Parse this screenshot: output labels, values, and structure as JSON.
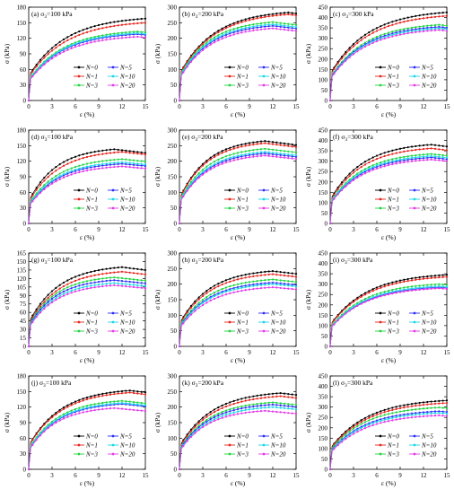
{
  "figure": {
    "legend_labels": [
      "N=0",
      "N=1",
      "N=3",
      "N=5",
      "N=10",
      "N=20"
    ]
  },
  "chart_data": [
    {
      "type": "line",
      "panel_label": "(a) σ3=100 kPa",
      "xlabel": "ε (%)",
      "ylabel": "σ (kPa)",
      "xlim": [
        0,
        15
      ],
      "xticks": [
        0,
        3,
        6,
        9,
        12,
        15
      ],
      "ylim": [
        0,
        180
      ],
      "yticks": [
        0,
        30,
        60,
        90,
        120,
        150,
        180
      ],
      "legend": "bottom-right",
      "series": [
        {
          "name": "N=0",
          "color": "#000000",
          "peak": 158,
          "peak_strain": 15
        },
        {
          "name": "N=1",
          "color": "#e8241c",
          "peak": 150,
          "peak_strain": 15
        },
        {
          "name": "N=3",
          "color": "#1fd43d",
          "peak": 133,
          "peak_strain": 14
        },
        {
          "name": "N=5",
          "color": "#2b2bff",
          "peak": 128,
          "peak_strain": 14
        },
        {
          "name": "N=10",
          "color": "#19d7e6",
          "peak": 130,
          "peak_strain": 14
        },
        {
          "name": "N=20",
          "color": "#e23ae6",
          "peak": 123,
          "peak_strain": 14
        }
      ]
    },
    {
      "type": "line",
      "panel_label": "(b) σ3=200 kPa",
      "xlabel": "ε (%)",
      "ylabel": "σ (kPa)",
      "xlim": [
        0,
        15
      ],
      "xticks": [
        0,
        3,
        6,
        9,
        12,
        15
      ],
      "ylim": [
        0,
        300
      ],
      "yticks": [
        0,
        50,
        100,
        150,
        200,
        250,
        300
      ],
      "legend": "bottom-right",
      "series": [
        {
          "name": "N=0",
          "color": "#000000",
          "peak": 283,
          "peak_strain": 14
        },
        {
          "name": "N=1",
          "color": "#e8241c",
          "peak": 277,
          "peak_strain": 14
        },
        {
          "name": "N=3",
          "color": "#1fd43d",
          "peak": 252,
          "peak_strain": 12
        },
        {
          "name": "N=5",
          "color": "#2b2bff",
          "peak": 240,
          "peak_strain": 12
        },
        {
          "name": "N=10",
          "color": "#19d7e6",
          "peak": 245,
          "peak_strain": 12
        },
        {
          "name": "N=20",
          "color": "#e23ae6",
          "peak": 232,
          "peak_strain": 12
        }
      ]
    },
    {
      "type": "line",
      "panel_label": "(c) σ3=300 kPa",
      "xlabel": "ε (%)",
      "ylabel": "σ (kPa)",
      "xlim": [
        0,
        15
      ],
      "xticks": [
        0,
        3,
        6,
        9,
        12,
        15
      ],
      "ylim": [
        0,
        450
      ],
      "yticks": [
        0,
        50,
        100,
        150,
        200,
        250,
        300,
        350,
        400,
        450
      ],
      "legend": "bottom-right",
      "series": [
        {
          "name": "N=0",
          "color": "#000000",
          "peak": 425,
          "peak_strain": 15
        },
        {
          "name": "N=1",
          "color": "#e8241c",
          "peak": 408,
          "peak_strain": 15
        },
        {
          "name": "N=3",
          "color": "#1fd43d",
          "peak": 365,
          "peak_strain": 14
        },
        {
          "name": "N=5",
          "color": "#2b2bff",
          "peak": 355,
          "peak_strain": 14
        },
        {
          "name": "N=10",
          "color": "#19d7e6",
          "peak": 348,
          "peak_strain": 14
        },
        {
          "name": "N=20",
          "color": "#e23ae6",
          "peak": 340,
          "peak_strain": 14
        }
      ]
    },
    {
      "type": "line",
      "panel_label": "(d) σ3=100 kPa",
      "xlabel": "ε (%)",
      "ylabel": "σ (kPa)",
      "xlim": [
        0,
        15
      ],
      "xticks": [
        0,
        3,
        6,
        9,
        12,
        15
      ],
      "ylim": [
        0,
        180
      ],
      "yticks": [
        0,
        30,
        60,
        90,
        120,
        150,
        180
      ],
      "legend": "bottom-right",
      "series": [
        {
          "name": "N=0",
          "color": "#000000",
          "peak": 143,
          "peak_strain": 11
        },
        {
          "name": "N=1",
          "color": "#e8241c",
          "peak": 138,
          "peak_strain": 12
        },
        {
          "name": "N=3",
          "color": "#1fd43d",
          "peak": 124,
          "peak_strain": 12
        },
        {
          "name": "N=5",
          "color": "#2b2bff",
          "peak": 115,
          "peak_strain": 12
        },
        {
          "name": "N=10",
          "color": "#19d7e6",
          "peak": 118,
          "peak_strain": 12
        },
        {
          "name": "N=20",
          "color": "#e23ae6",
          "peak": 110,
          "peak_strain": 12
        }
      ]
    },
    {
      "type": "line",
      "panel_label": "(e) σ3=200 kPa",
      "xlabel": "ε (%)",
      "ylabel": "σ (kPa)",
      "xlim": [
        0,
        15
      ],
      "xticks": [
        0,
        3,
        6,
        9,
        12,
        15
      ],
      "ylim": [
        0,
        300
      ],
      "yticks": [
        0,
        50,
        100,
        150,
        200,
        250,
        300
      ],
      "legend": "bottom-right",
      "series": [
        {
          "name": "N=0",
          "color": "#000000",
          "peak": 265,
          "peak_strain": 11
        },
        {
          "name": "N=1",
          "color": "#e8241c",
          "peak": 258,
          "peak_strain": 11
        },
        {
          "name": "N=3",
          "color": "#1fd43d",
          "peak": 240,
          "peak_strain": 11
        },
        {
          "name": "N=5",
          "color": "#2b2bff",
          "peak": 225,
          "peak_strain": 11
        },
        {
          "name": "N=10",
          "color": "#19d7e6",
          "peak": 230,
          "peak_strain": 11
        },
        {
          "name": "N=20",
          "color": "#e23ae6",
          "peak": 218,
          "peak_strain": 11
        }
      ]
    },
    {
      "type": "line",
      "panel_label": "(f) σ3=300 kPa",
      "xlabel": "ε (%)",
      "ylabel": "σ (kPa)",
      "xlim": [
        0,
        15
      ],
      "xticks": [
        0,
        3,
        6,
        9,
        12,
        15
      ],
      "ylim": [
        0,
        450
      ],
      "yticks": [
        0,
        50,
        100,
        150,
        200,
        250,
        300,
        350,
        400,
        450
      ],
      "legend": "bottom-right",
      "series": [
        {
          "name": "N=0",
          "color": "#000000",
          "peak": 380,
          "peak_strain": 13
        },
        {
          "name": "N=1",
          "color": "#e8241c",
          "peak": 362,
          "peak_strain": 13
        },
        {
          "name": "N=3",
          "color": "#1fd43d",
          "peak": 335,
          "peak_strain": 13
        },
        {
          "name": "N=5",
          "color": "#2b2bff",
          "peak": 318,
          "peak_strain": 13
        },
        {
          "name": "N=10",
          "color": "#19d7e6",
          "peak": 325,
          "peak_strain": 13
        },
        {
          "name": "N=20",
          "color": "#e23ae6",
          "peak": 308,
          "peak_strain": 13
        }
      ]
    },
    {
      "type": "line",
      "panel_label": "(g) σ3=100 kPa",
      "xlabel": "ε (%)",
      "ylabel": "σ (kPa)",
      "xlim": [
        0,
        15
      ],
      "xticks": [
        0,
        3,
        6,
        9,
        12,
        15
      ],
      "ylim": [
        0,
        165
      ],
      "yticks": [
        0,
        15,
        30,
        45,
        60,
        75,
        90,
        105,
        120,
        135,
        150,
        165
      ],
      "legend": "bottom-right",
      "series": [
        {
          "name": "N=0",
          "color": "#000000",
          "peak": 140,
          "peak_strain": 12
        },
        {
          "name": "N=1",
          "color": "#e8241c",
          "peak": 132,
          "peak_strain": 12
        },
        {
          "name": "N=3",
          "color": "#1fd43d",
          "peak": 122,
          "peak_strain": 11
        },
        {
          "name": "N=5",
          "color": "#2b2bff",
          "peak": 117,
          "peak_strain": 11
        },
        {
          "name": "N=10",
          "color": "#19d7e6",
          "peak": 112,
          "peak_strain": 11
        },
        {
          "name": "N=20",
          "color": "#e23ae6",
          "peak": 108,
          "peak_strain": 11
        }
      ]
    },
    {
      "type": "line",
      "panel_label": "(h) σ3=200 kPa",
      "xlabel": "ε (%)",
      "ylabel": "σ (kPa)",
      "xlim": [
        0,
        15
      ],
      "xticks": [
        0,
        3,
        6,
        9,
        12,
        15
      ],
      "ylim": [
        0,
        300
      ],
      "yticks": [
        0,
        50,
        100,
        150,
        200,
        250,
        300
      ],
      "legend": "bottom-right",
      "series": [
        {
          "name": "N=0",
          "color": "#000000",
          "peak": 242,
          "peak_strain": 12
        },
        {
          "name": "N=1",
          "color": "#e8241c",
          "peak": 232,
          "peak_strain": 12
        },
        {
          "name": "N=3",
          "color": "#1fd43d",
          "peak": 215,
          "peak_strain": 12
        },
        {
          "name": "N=5",
          "color": "#2b2bff",
          "peak": 205,
          "peak_strain": 12
        },
        {
          "name": "N=10",
          "color": "#19d7e6",
          "peak": 200,
          "peak_strain": 12
        },
        {
          "name": "N=20",
          "color": "#e23ae6",
          "peak": 190,
          "peak_strain": 12
        }
      ]
    },
    {
      "type": "line",
      "panel_label": "(i) σ3=300 kPa",
      "xlabel": "ε (%)",
      "ylabel": "σ (kPa)",
      "xlim": [
        0,
        15
      ],
      "xticks": [
        0,
        3,
        6,
        9,
        12,
        15
      ],
      "ylim": [
        0,
        450
      ],
      "yticks": [
        0,
        50,
        100,
        150,
        200,
        250,
        300,
        350,
        400,
        450
      ],
      "legend": "bottom-right",
      "series": [
        {
          "name": "N=0",
          "color": "#000000",
          "peak": 345,
          "peak_strain": 15
        },
        {
          "name": "N=1",
          "color": "#e8241c",
          "peak": 335,
          "peak_strain": 15
        },
        {
          "name": "N=3",
          "color": "#1fd43d",
          "peak": 300,
          "peak_strain": 14
        },
        {
          "name": "N=5",
          "color": "#2b2bff",
          "peak": 285,
          "peak_strain": 14
        },
        {
          "name": "N=10",
          "color": "#19d7e6",
          "peak": 290,
          "peak_strain": 14
        },
        {
          "name": "N=20",
          "color": "#e23ae6",
          "peak": 280,
          "peak_strain": 14
        }
      ]
    },
    {
      "type": "line",
      "panel_label": "(j) σ3=100 kPa",
      "xlabel": "ε (%)",
      "ylabel": "σ (kPa)",
      "xlim": [
        0,
        15
      ],
      "xticks": [
        0,
        3,
        6,
        9,
        12,
        15
      ],
      "ylim": [
        0,
        180
      ],
      "yticks": [
        0,
        30,
        60,
        90,
        120,
        150,
        180
      ],
      "legend": "bottom-right",
      "series": [
        {
          "name": "N=0",
          "color": "#000000",
          "peak": 152,
          "peak_strain": 13
        },
        {
          "name": "N=1",
          "color": "#e8241c",
          "peak": 148,
          "peak_strain": 13
        },
        {
          "name": "N=3",
          "color": "#1fd43d",
          "peak": 132,
          "peak_strain": 12
        },
        {
          "name": "N=5",
          "color": "#2b2bff",
          "peak": 126,
          "peak_strain": 12
        },
        {
          "name": "N=10",
          "color": "#19d7e6",
          "peak": 128,
          "peak_strain": 12
        },
        {
          "name": "N=20",
          "color": "#e23ae6",
          "peak": 118,
          "peak_strain": 11
        }
      ]
    },
    {
      "type": "line",
      "panel_label": "(k) σ3=200 kPa",
      "xlabel": "ε (%)",
      "ylabel": "σ (kPa)",
      "xlim": [
        0,
        15
      ],
      "xticks": [
        0,
        3,
        6,
        9,
        12,
        15
      ],
      "ylim": [
        0,
        300
      ],
      "yticks": [
        0,
        50,
        100,
        150,
        200,
        250,
        300
      ],
      "legend": "bottom-right",
      "series": [
        {
          "name": "N=0",
          "color": "#000000",
          "peak": 245,
          "peak_strain": 13
        },
        {
          "name": "N=1",
          "color": "#e8241c",
          "peak": 235,
          "peak_strain": 13
        },
        {
          "name": "N=3",
          "color": "#1fd43d",
          "peak": 215,
          "peak_strain": 12
        },
        {
          "name": "N=5",
          "color": "#2b2bff",
          "peak": 208,
          "peak_strain": 12
        },
        {
          "name": "N=10",
          "color": "#19d7e6",
          "peak": 200,
          "peak_strain": 12
        },
        {
          "name": "N=20",
          "color": "#e23ae6",
          "peak": 188,
          "peak_strain": 11
        }
      ]
    },
    {
      "type": "line",
      "panel_label": "(l) σ3=300 kPa",
      "xlabel": "ε (%)",
      "ylabel": "σ (kPa)",
      "xlim": [
        0,
        15
      ],
      "xticks": [
        0,
        3,
        6,
        9,
        12,
        15
      ],
      "ylim": [
        0,
        450
      ],
      "yticks": [
        0,
        50,
        100,
        150,
        200,
        250,
        300,
        350,
        400,
        450
      ],
      "legend": "bottom-right",
      "series": [
        {
          "name": "N=0",
          "color": "#000000",
          "peak": 332,
          "peak_strain": 15
        },
        {
          "name": "N=1",
          "color": "#e8241c",
          "peak": 320,
          "peak_strain": 15
        },
        {
          "name": "N=3",
          "color": "#1fd43d",
          "peak": 298,
          "peak_strain": 14
        },
        {
          "name": "N=5",
          "color": "#2b2bff",
          "peak": 280,
          "peak_strain": 14
        },
        {
          "name": "N=10",
          "color": "#19d7e6",
          "peak": 272,
          "peak_strain": 14
        },
        {
          "name": "N=20",
          "color": "#e23ae6",
          "peak": 260,
          "peak_strain": 14
        }
      ]
    }
  ]
}
